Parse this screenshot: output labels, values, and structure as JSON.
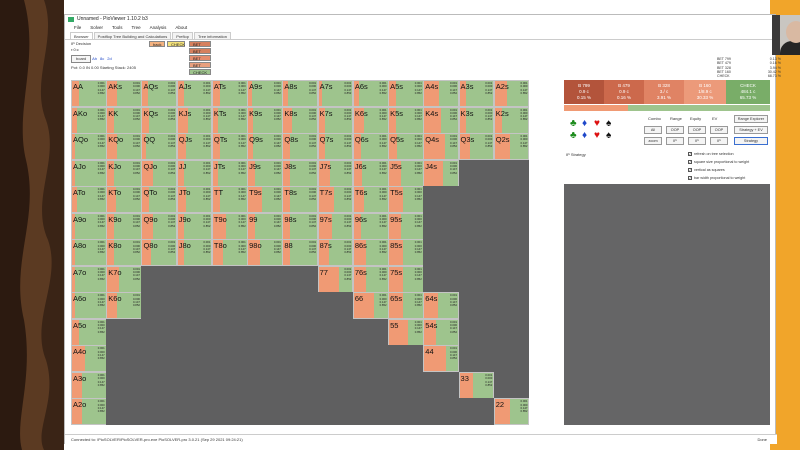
{
  "window": {
    "title": "Unnamed - PioViewer 1.10.2 b3"
  },
  "menu": [
    "File",
    "Solver",
    "Tools",
    "Tree",
    "Analysis",
    "About"
  ],
  "tabs": [
    "Browser",
    "Postflop Tree Building and Calculations",
    "Preflop",
    "Tree information"
  ],
  "info": {
    "player": "IP Decision",
    "path": "r:0:c",
    "board_label": "board",
    "cards": [
      "Ah",
      "8c",
      "2d"
    ],
    "pot_stack": "Pot: 0.0 IN 0.00 Starting Stack: 2405"
  },
  "actions": [
    {
      "label": "back",
      "color": "#f4b27f"
    },
    {
      "label": "CHECK",
      "color": "#f3e17a"
    },
    {
      "label": "BET 2700",
      "color": "#d6805e"
    },
    {
      "label": "BET 6478",
      "color": "#d6805e"
    },
    {
      "label": "BET 328",
      "color": "#e58c6d"
    },
    {
      "label": "BET 160",
      "color": "#e9a07e"
    },
    {
      "label": "CHECK",
      "color": "#9ec48d"
    }
  ],
  "top_stats": [
    {
      "name": "BET 799",
      "val": "0.13 %"
    },
    {
      "name": "BET 479",
      "val": "0.16 %"
    },
    {
      "name": "BET 328",
      "val": "3.94 %"
    },
    {
      "name": "BET 160",
      "val": "30.42 %"
    },
    {
      "name": "CHECK",
      "val": "68.73 %"
    }
  ],
  "freq": [
    {
      "name": "B 799",
      "ev": "0.9 c",
      "pct": "0.15 %",
      "color": "#b3543b",
      "w": 40
    },
    {
      "name": "B 479",
      "ev": "0.9 c",
      "pct": "0.16 %",
      "color": "#cc694c",
      "w": 40
    },
    {
      "name": "B 328",
      "ev": "3./ c",
      "pct": "3.91 %",
      "color": "#e08364",
      "w": 40
    },
    {
      "name": "B 160",
      "ev": "1/8.9 c",
      "pct": "30.33 %",
      "color": "#ec9a7a",
      "w": 42
    },
    {
      "name": "CHECK",
      "ev": "484.1 c",
      "pct": "65.73 %",
      "color": "#79ad68",
      "w": 44
    }
  ],
  "controls": {
    "combo": "Combo",
    "range": "Range",
    "equity": "Equity",
    "ev": "EV",
    "range_explorer": "Range Explorer",
    "strategy_ev": "Strategy + EV",
    "strategy": "Strategy",
    "btns": [
      "All",
      "OOP",
      "OOP",
      "OOP",
      "IP",
      "IP",
      "IP"
    ],
    "zoom": "zoom"
  },
  "strategy_label": "IP Strategy",
  "options": [
    "refresh on tree selection",
    "square size proportional to weight",
    "vertical as squares",
    "bar width proportional to weight"
  ],
  "status": {
    "left": "Connected to: \\PioSOLVER\\PioSOLVER-pro.exe PioSOLVER-pro 3.0.21 (Sep 29 2021 09:24:21)",
    "right": "Done"
  },
  "ranks": [
    "A",
    "K",
    "Q",
    "J",
    "T",
    "9",
    "8",
    "7",
    "6",
    "5",
    "4",
    "3",
    "2"
  ],
  "hands": [
    [
      "AA",
      "AKs",
      "AQs",
      "AJs",
      "ATs",
      "A9s",
      "A8s",
      "A7s",
      "A6s",
      "A5s",
      "A4s",
      "A3s",
      "A2s"
    ],
    [
      "AKo",
      "KK",
      "KQs",
      "KJs",
      "KTs",
      "K9s",
      "K8s",
      "K7s",
      "K6s",
      "K5s",
      "K4s",
      "K3s",
      "K2s"
    ],
    [
      "AQo",
      "KQo",
      "QQ",
      "QJs",
      "QTs",
      "Q9s",
      "Q8s",
      "Q7s",
      "Q6s",
      "Q5s",
      "Q4s",
      "Q3s",
      "Q2s"
    ],
    [
      "AJo",
      "KJo",
      "QJo",
      "JJ",
      "JTs",
      "J9s",
      "J8s",
      "J7s",
      "J6s",
      "J5s",
      "J4s",
      "",
      ""
    ],
    [
      "ATo",
      "KTo",
      "QTo",
      "JTo",
      "TT",
      "T9s",
      "T8s",
      "T7s",
      "T6s",
      "T5s",
      "",
      "",
      ""
    ],
    [
      "A9o",
      "K9o",
      "Q9o",
      "J9o",
      "T9o",
      "99",
      "98s",
      "97s",
      "96s",
      "95s",
      "",
      "",
      ""
    ],
    [
      "A8o",
      "K8o",
      "Q8o",
      "J8o",
      "T8o",
      "98o",
      "88",
      "87s",
      "86s",
      "85s",
      "",
      "",
      ""
    ],
    [
      "A7o",
      "K7o",
      "",
      "",
      "",
      "",
      "",
      "77",
      "76s",
      "75s",
      "",
      "",
      ""
    ],
    [
      "A6o",
      "K6o",
      "",
      "",
      "",
      "",
      "",
      "",
      "66",
      "65s",
      "64s",
      "",
      ""
    ],
    [
      "A5o",
      "",
      "",
      "",
      "",
      "",
      "",
      "",
      "",
      "55",
      "54s",
      "",
      ""
    ],
    [
      "A4o",
      "",
      "",
      "",
      "",
      "",
      "",
      "",
      "",
      "",
      "44",
      "",
      ""
    ],
    [
      "A3o",
      "",
      "",
      "",
      "",
      "",
      "",
      "",
      "",
      "",
      "",
      "33",
      ""
    ],
    [
      "A2o",
      "",
      "",
      "",
      "",
      "",
      "",
      "",
      "",
      "",
      "",
      "",
      "22"
    ]
  ],
  "cell_values": [
    "0.001",
    "0.000",
    "0.147",
    "0.852"
  ],
  "bet_fraction": [
    [
      0.2,
      0.3,
      0.15,
      0.2,
      0.2,
      0.1,
      0.15,
      0.1,
      0.15,
      0.2,
      0.45,
      0.2,
      0.35
    ],
    [
      0.15,
      0.2,
      0.2,
      0.3,
      0.15,
      0.15,
      0.25,
      0.2,
      0.3,
      0.2,
      0.5,
      0.2,
      0.2
    ],
    [
      0.1,
      0.3,
      0.1,
      0.25,
      0.2,
      0.15,
      0.2,
      0.2,
      0.2,
      0.25,
      0.6,
      0.3,
      0.45
    ],
    [
      0.1,
      0.2,
      0.3,
      0.2,
      0.15,
      0.2,
      0.2,
      0.35,
      0.25,
      0.35,
      0.55,
      0,
      0
    ],
    [
      0.15,
      0.25,
      0.2,
      0.25,
      0.2,
      0.4,
      0.2,
      0.45,
      0.3,
      0.4,
      0,
      0,
      0
    ],
    [
      0.1,
      0.2,
      0.3,
      0.2,
      0.4,
      0.2,
      0.2,
      0.4,
      0.2,
      0.35,
      0,
      0,
      0
    ],
    [
      0.1,
      0.2,
      0.25,
      0.2,
      0.3,
      0.35,
      0.2,
      0.3,
      0.35,
      0.4,
      0,
      0,
      0
    ],
    [
      0.1,
      0.35,
      0,
      0,
      0,
      0,
      0,
      0.6,
      0.35,
      0.4,
      0,
      0,
      0
    ],
    [
      0.1,
      0.3,
      0,
      0,
      0,
      0,
      0,
      0,
      0.6,
      0.4,
      0.4,
      0,
      0
    ],
    [
      0.2,
      0,
      0,
      0,
      0,
      0,
      0,
      0,
      0,
      0.55,
      0.35,
      0,
      0
    ],
    [
      0.4,
      0,
      0,
      0,
      0,
      0,
      0,
      0,
      0,
      0,
      0.65,
      0,
      0
    ],
    [
      0.3,
      0,
      0,
      0,
      0,
      0,
      0,
      0,
      0,
      0,
      0,
      0.4,
      0
    ],
    [
      0.3,
      0,
      0,
      0,
      0,
      0,
      0,
      0,
      0,
      0,
      0,
      0,
      0.45
    ]
  ],
  "colors": {
    "bet": "#f09a74",
    "check": "#9ec48d",
    "empty": "#5f5f60",
    "brand": "#f1a52a"
  }
}
